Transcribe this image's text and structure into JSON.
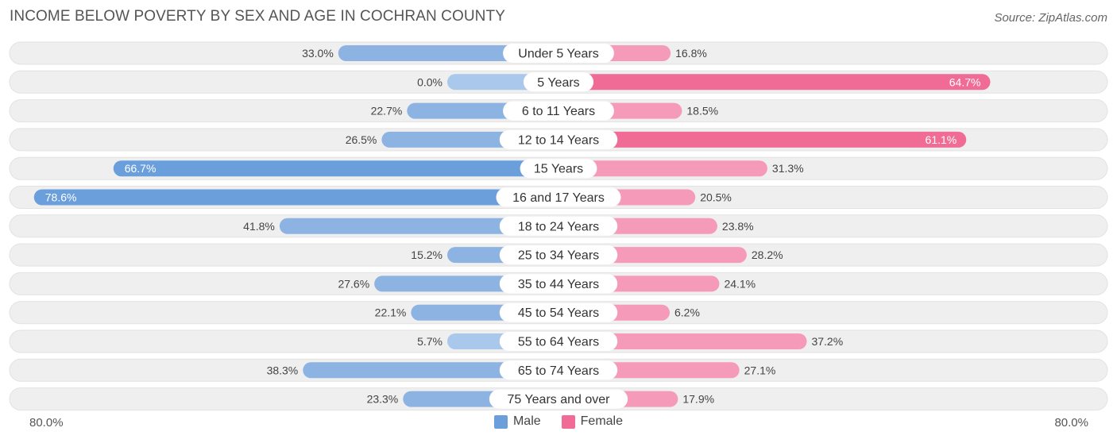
{
  "chart_data": {
    "type": "bar",
    "orientation": "horizontal-diverging",
    "title": "INCOME BELOW POVERTY BY SEX AND AGE IN COCHRAN COUNTY",
    "source": "Source: ZipAtlas.com",
    "categories": [
      "Under 5 Years",
      "5 Years",
      "6 to 11 Years",
      "12 to 14 Years",
      "15 Years",
      "16 and 17 Years",
      "18 to 24 Years",
      "25 to 34 Years",
      "35 to 44 Years",
      "45 to 54 Years",
      "55 to 64 Years",
      "65 to 74 Years",
      "75 Years and over"
    ],
    "series": [
      {
        "name": "Male",
        "values": [
          33.0,
          0.0,
          22.7,
          26.5,
          66.7,
          78.6,
          41.8,
          15.2,
          27.6,
          22.1,
          5.7,
          38.3,
          23.3
        ],
        "labels": [
          "33.0%",
          "0.0%",
          "22.7%",
          "26.5%",
          "66.7%",
          "78.6%",
          "41.8%",
          "15.2%",
          "27.6%",
          "22.1%",
          "5.7%",
          "38.3%",
          "23.3%"
        ]
      },
      {
        "name": "Female",
        "values": [
          16.8,
          64.7,
          18.5,
          61.1,
          31.3,
          20.5,
          23.8,
          28.2,
          24.1,
          6.2,
          37.2,
          27.1,
          17.9
        ],
        "labels": [
          "16.8%",
          "64.7%",
          "18.5%",
          "61.1%",
          "31.3%",
          "20.5%",
          "23.8%",
          "28.2%",
          "24.1%",
          "6.2%",
          "37.2%",
          "27.1%",
          "17.9%"
        ]
      }
    ],
    "axis": {
      "max": 80.0,
      "left_label": "80.0%",
      "right_label": "80.0%"
    },
    "colors": {
      "male": "#8db3e2",
      "male_strong": "#6b9fdc",
      "female": "#f59ab8",
      "female_strong": "#f06b95",
      "track": "#efefef",
      "track_border": "#e2e2e2"
    },
    "legend": {
      "male_label": "Male",
      "female_label": "Female",
      "position": "bottom-center"
    }
  }
}
